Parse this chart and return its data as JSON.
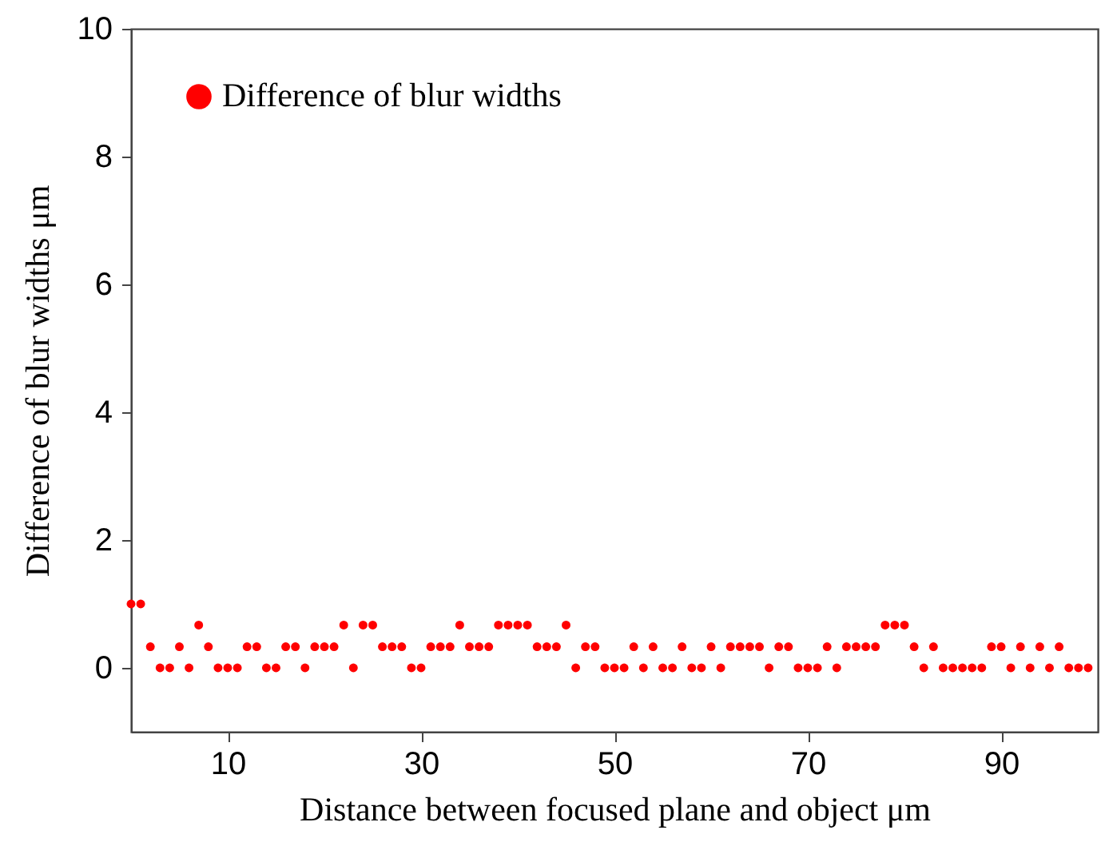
{
  "chart_data": {
    "type": "scatter",
    "xlabel": "Distance between focused plane and object   μm",
    "ylabel": "Difference of blur widths  μm",
    "x": [
      0,
      1,
      2,
      3,
      4,
      5,
      6,
      7,
      8,
      9,
      10,
      11,
      12,
      13,
      14,
      15,
      16,
      17,
      18,
      19,
      20,
      21,
      22,
      23,
      24,
      25,
      26,
      27,
      28,
      29,
      30,
      31,
      32,
      33,
      34,
      35,
      36,
      37,
      38,
      39,
      40,
      41,
      42,
      43,
      44,
      45,
      46,
      47,
      48,
      49,
      50,
      51,
      52,
      53,
      54,
      55,
      56,
      57,
      58,
      59,
      60,
      61,
      62,
      63,
      64,
      65,
      66,
      67,
      68,
      69,
      70,
      71,
      72,
      73,
      74,
      75,
      76,
      77,
      78,
      79,
      80,
      81,
      82,
      83,
      84,
      85,
      86,
      87,
      88,
      89,
      90,
      91,
      92,
      93,
      94,
      95,
      96,
      97,
      98,
      99
    ],
    "series": [
      {
        "name": "Difference of  blur widths",
        "color": "#ff0000",
        "values": [
          1,
          1,
          0.33,
          0,
          0,
          0.33,
          0,
          0.67,
          0.33,
          0,
          0,
          0,
          0.33,
          0.33,
          0,
          0,
          0.33,
          0.33,
          0,
          0.33,
          0.33,
          0.33,
          0.67,
          0,
          0.67,
          0.67,
          0.33,
          0.33,
          0.33,
          0,
          0,
          0.33,
          0.33,
          0.33,
          0.67,
          0.33,
          0.33,
          0.33,
          0.67,
          0.67,
          0.67,
          0.67,
          0.33,
          0.33,
          0.33,
          0.67,
          0,
          0.33,
          0.33,
          0,
          0,
          0,
          0.33,
          0,
          0.33,
          0,
          0,
          0.33,
          0,
          0,
          0.33,
          0,
          0.33,
          0.33,
          0.33,
          0.33,
          0,
          0.33,
          0.33,
          0,
          0,
          0,
          0.33,
          0,
          0.33,
          0.33,
          0.33,
          0.33,
          0.67,
          0.67,
          0.67,
          0.33,
          0,
          0.33,
          0,
          0,
          0,
          0,
          0,
          0.33,
          0.33,
          0,
          0.33,
          0,
          0.33,
          0,
          0.33,
          0,
          0,
          0
        ]
      }
    ],
    "xlim": [
      0,
      100
    ],
    "xticks": [
      10,
      30,
      50,
      70,
      90
    ],
    "ylim": [
      -1,
      10
    ],
    "yticks": [
      0,
      2,
      4,
      6,
      8,
      10
    ],
    "marker": "circle",
    "legend": "top left",
    "grid": false
  }
}
